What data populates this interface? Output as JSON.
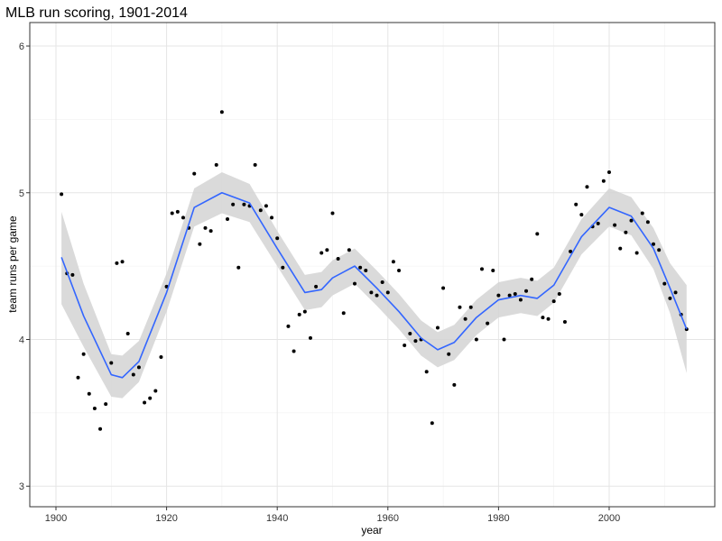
{
  "chart_data": {
    "type": "scatter",
    "title": "MLB run scoring, 1901-2014",
    "x_label": "year",
    "y_label": "team runs per game",
    "x": [
      1901,
      1902,
      1903,
      1904,
      1905,
      1906,
      1907,
      1908,
      1909,
      1910,
      1911,
      1912,
      1913,
      1914,
      1915,
      1916,
      1917,
      1918,
      1919,
      1920,
      1921,
      1922,
      1923,
      1924,
      1925,
      1926,
      1927,
      1928,
      1929,
      1930,
      1931,
      1932,
      1933,
      1934,
      1935,
      1936,
      1937,
      1938,
      1939,
      1940,
      1941,
      1942,
      1943,
      1944,
      1945,
      1946,
      1947,
      1948,
      1949,
      1950,
      1951,
      1952,
      1953,
      1954,
      1955,
      1956,
      1957,
      1958,
      1959,
      1960,
      1961,
      1962,
      1963,
      1964,
      1965,
      1966,
      1967,
      1968,
      1969,
      1970,
      1971,
      1972,
      1973,
      1974,
      1975,
      1976,
      1977,
      1978,
      1979,
      1980,
      1981,
      1982,
      1983,
      1984,
      1985,
      1986,
      1987,
      1988,
      1989,
      1990,
      1991,
      1992,
      1993,
      1994,
      1995,
      1996,
      1997,
      1998,
      1999,
      2000,
      2001,
      2002,
      2003,
      2004,
      2005,
      2006,
      2007,
      2008,
      2009,
      2010,
      2011,
      2012,
      2013,
      2014
    ],
    "values": [
      4.99,
      4.45,
      4.44,
      3.74,
      3.9,
      3.63,
      3.53,
      3.39,
      3.56,
      3.84,
      4.52,
      4.53,
      4.04,
      3.76,
      3.81,
      3.57,
      3.6,
      3.65,
      3.88,
      4.36,
      4.86,
      4.87,
      4.83,
      4.76,
      5.13,
      4.65,
      4.76,
      4.74,
      5.19,
      5.55,
      4.82,
      4.92,
      4.49,
      4.92,
      4.91,
      5.19,
      4.88,
      4.91,
      4.83,
      4.69,
      4.49,
      4.09,
      3.92,
      4.17,
      4.19,
      4.01,
      4.36,
      4.59,
      4.61,
      4.86,
      4.55,
      4.18,
      4.61,
      4.38,
      4.49,
      4.47,
      4.32,
      4.3,
      4.39,
      4.32,
      4.53,
      4.47,
      3.96,
      4.04,
      3.99,
      4.0,
      3.78,
      3.43,
      4.08,
      4.35,
      3.9,
      3.69,
      4.22,
      4.14,
      4.22,
      4.0,
      4.48,
      4.11,
      4.47,
      4.3,
      4.0,
      4.3,
      4.31,
      4.27,
      4.33,
      4.41,
      4.72,
      4.15,
      4.14,
      4.26,
      4.31,
      4.12,
      4.6,
      4.92,
      4.85,
      5.04,
      4.77,
      4.79,
      5.08,
      5.14,
      4.78,
      4.62,
      4.73,
      4.81,
      4.59,
      4.86,
      4.8,
      4.65,
      4.61,
      4.38,
      4.28,
      4.32,
      4.17,
      4.07
    ],
    "color": "#000000",
    "smooth": {
      "x": [
        1901,
        1905,
        1910,
        1912,
        1915,
        1920,
        1925,
        1930,
        1935,
        1940,
        1945,
        1948,
        1950,
        1954,
        1958,
        1962,
        1966,
        1969,
        1972,
        1976,
        1980,
        1984,
        1987,
        1990,
        1995,
        2000,
        2004,
        2008,
        2011,
        2014
      ],
      "values": [
        4.56,
        4.16,
        3.76,
        3.74,
        3.85,
        4.32,
        4.9,
        5.0,
        4.93,
        4.62,
        4.32,
        4.34,
        4.42,
        4.5,
        4.35,
        4.19,
        4.01,
        3.93,
        3.98,
        4.15,
        4.27,
        4.3,
        4.28,
        4.37,
        4.7,
        4.9,
        4.84,
        4.62,
        4.35,
        4.07
      ],
      "lower": [
        4.24,
        3.95,
        3.61,
        3.6,
        3.71,
        4.19,
        4.77,
        4.86,
        4.8,
        4.5,
        4.2,
        4.22,
        4.3,
        4.38,
        4.23,
        4.07,
        3.89,
        3.81,
        3.86,
        4.03,
        4.15,
        4.18,
        4.16,
        4.25,
        4.58,
        4.77,
        4.71,
        4.48,
        4.18,
        3.77
      ],
      "upper": [
        4.87,
        4.38,
        3.9,
        3.89,
        3.99,
        4.45,
        5.03,
        5.14,
        5.06,
        4.74,
        4.44,
        4.46,
        4.54,
        4.62,
        4.47,
        4.31,
        4.13,
        4.05,
        4.1,
        4.27,
        4.39,
        4.42,
        4.4,
        4.49,
        4.82,
        5.03,
        4.97,
        4.76,
        4.52,
        4.37
      ],
      "color": "#3366ff",
      "band_color": "#d3d3d3"
    },
    "xlim": [
      1895.27,
      2019.09
    ],
    "ylim": [
      2.86,
      6.16
    ],
    "xticks": [
      1900,
      1920,
      1940,
      1960,
      1980,
      2000
    ],
    "yticks": [
      3,
      4,
      5,
      6
    ],
    "grid": true,
    "minor_grid": true
  }
}
